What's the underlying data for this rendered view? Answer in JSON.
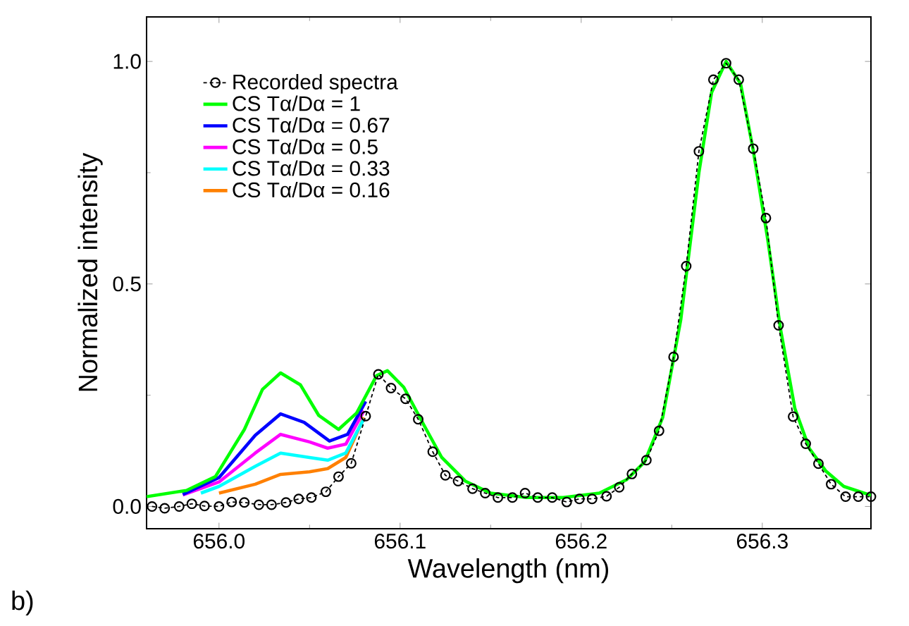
{
  "chart_data": {
    "type": "line",
    "xlabel": "Wavelength (nm)",
    "ylabel": "Normalized intensity",
    "annotations": [
      "b)"
    ],
    "xlim": [
      655.96,
      656.36
    ],
    "ylim": [
      -0.05,
      1.1
    ],
    "xticks": [
      {
        "value": 656.0,
        "label": "656.0"
      },
      {
        "value": 656.1,
        "label": "656.1"
      },
      {
        "value": 656.2,
        "label": "656.2"
      },
      {
        "value": 656.3,
        "label": "656.3"
      }
    ],
    "yticks": [
      {
        "value": 0.0,
        "label": "0.0"
      },
      {
        "value": 0.5,
        "label": "0.5"
      },
      {
        "value": 1.0,
        "label": "1.0"
      }
    ],
    "grid": false,
    "legend": "top left",
    "series": [
      {
        "name": "Recorded spectra",
        "color": "#000000",
        "line_style": "dashed",
        "marker": "circle",
        "x": [
          655.963,
          655.97,
          655.978,
          655.985,
          655.992,
          656.0,
          656.007,
          656.014,
          656.022,
          656.029,
          656.037,
          656.044,
          656.051,
          656.059,
          656.066,
          656.073,
          656.081,
          656.088,
          656.095,
          656.103,
          656.11,
          656.118,
          656.125,
          656.132,
          656.14,
          656.147,
          656.154,
          656.162,
          656.169,
          656.176,
          656.184,
          656.192,
          656.199,
          656.206,
          656.214,
          656.221,
          656.228,
          656.236,
          656.243,
          656.251,
          656.258,
          656.265,
          656.273,
          656.28,
          656.287,
          656.295,
          656.302,
          656.309,
          656.317,
          656.324,
          656.331,
          656.338,
          656.346,
          656.353,
          656.36
        ],
        "values": [
          0.0,
          -0.004,
          0.0,
          0.006,
          0.001,
          0.0,
          0.01,
          0.009,
          0.004,
          0.004,
          0.009,
          0.017,
          0.02,
          0.033,
          0.067,
          0.097,
          0.203,
          0.297,
          0.266,
          0.242,
          0.196,
          0.123,
          0.07,
          0.057,
          0.04,
          0.03,
          0.02,
          0.02,
          0.03,
          0.02,
          0.02,
          0.01,
          0.017,
          0.017,
          0.023,
          0.043,
          0.073,
          0.104,
          0.17,
          0.336,
          0.54,
          0.798,
          0.959,
          0.996,
          0.959,
          0.804,
          0.648,
          0.407,
          0.202,
          0.141,
          0.096,
          0.05,
          0.022,
          0.022,
          0.022
        ]
      },
      {
        "name": "CS Tα/Dα = 1",
        "color": "#00ff00",
        "line_style": "solid",
        "x": [
          655.96,
          655.982,
          655.998,
          656.014,
          656.024,
          656.034,
          656.045,
          656.055,
          656.066,
          656.076,
          656.087,
          656.093,
          656.102,
          656.113,
          656.123,
          656.136,
          656.15,
          656.17,
          656.19,
          656.21,
          656.225,
          656.235,
          656.245,
          656.255,
          656.265,
          656.272,
          656.28,
          656.288,
          656.295,
          656.303,
          656.31,
          656.318,
          656.326,
          656.335,
          656.345,
          656.36
        ],
        "values": [
          0.022,
          0.036,
          0.067,
          0.173,
          0.263,
          0.3,
          0.273,
          0.205,
          0.173,
          0.21,
          0.294,
          0.305,
          0.268,
          0.184,
          0.11,
          0.057,
          0.03,
          0.02,
          0.02,
          0.03,
          0.06,
          0.1,
          0.2,
          0.42,
          0.75,
          0.93,
          1.0,
          0.95,
          0.8,
          0.6,
          0.4,
          0.22,
          0.13,
          0.08,
          0.045,
          0.025
        ]
      },
      {
        "name": "CS Tα/Dα = 0.67",
        "color": "#0000ff",
        "line_style": "solid",
        "x": [
          655.98,
          656.0,
          656.02,
          656.034,
          656.047,
          656.061,
          656.071,
          656.081
        ],
        "values": [
          0.027,
          0.065,
          0.16,
          0.208,
          0.189,
          0.147,
          0.162,
          0.236
        ]
      },
      {
        "name": "CS Tα/Dα = 0.5",
        "color": "#ff00ff",
        "line_style": "solid",
        "x": [
          655.98,
          656.0,
          656.02,
          656.034,
          656.05,
          656.06,
          656.07,
          656.08
        ],
        "values": [
          0.026,
          0.055,
          0.12,
          0.162,
          0.145,
          0.131,
          0.14,
          0.215
        ]
      },
      {
        "name": "CS Tα/Dα = 0.33",
        "color": "#00ffff",
        "line_style": "solid",
        "x": [
          655.99,
          656.0,
          656.02,
          656.034,
          656.05,
          656.06,
          656.07,
          656.08
        ],
        "values": [
          0.03,
          0.045,
          0.09,
          0.12,
          0.11,
          0.104,
          0.12,
          0.197
        ]
      },
      {
        "name": "CS Tα/Dα = 0.16",
        "color": "#ff8000",
        "line_style": "solid",
        "x": [
          656.0,
          656.02,
          656.034,
          656.05,
          656.06,
          656.07,
          656.08
        ],
        "values": [
          0.03,
          0.05,
          0.072,
          0.078,
          0.085,
          0.11,
          0.2
        ]
      }
    ]
  }
}
